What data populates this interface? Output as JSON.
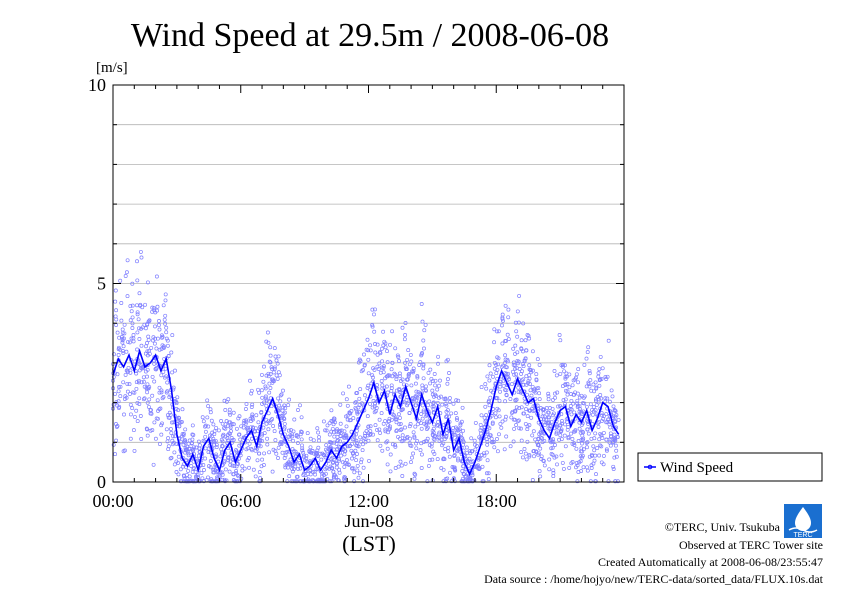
{
  "chart_data": {
    "type": "line",
    "title": "Wind Speed at 29.5m / 2008-06-08",
    "ylabel": "[m/s]",
    "xlabel_date": "Jun-08",
    "xlabel_tz": "(LST)",
    "ylim": [
      0,
      10
    ],
    "xlim_hours": [
      0,
      24
    ],
    "y_ticks": [
      0,
      5,
      10
    ],
    "x_tick_labels": [
      "00:00",
      "06:00",
      "12:00",
      "18:00"
    ],
    "x_tick_hours": [
      0,
      6,
      12,
      18
    ],
    "grid": "horizontal, every 1 m/s",
    "legend_position": "right",
    "series": [
      {
        "name": "Wind Speed",
        "color": "#0000ff",
        "hours": [
          0.0,
          0.25,
          0.5,
          0.75,
          1.0,
          1.25,
          1.5,
          1.75,
          2.0,
          2.25,
          2.5,
          2.75,
          3.0,
          3.25,
          3.5,
          3.75,
          4.0,
          4.25,
          4.5,
          4.75,
          5.0,
          5.25,
          5.5,
          5.75,
          6.0,
          6.25,
          6.5,
          6.75,
          7.0,
          7.25,
          7.5,
          7.75,
          8.0,
          8.25,
          8.5,
          8.75,
          9.0,
          9.25,
          9.5,
          9.75,
          10.0,
          10.25,
          10.5,
          10.75,
          11.0,
          11.25,
          11.5,
          11.75,
          12.0,
          12.25,
          12.5,
          12.75,
          13.0,
          13.25,
          13.5,
          13.75,
          14.0,
          14.25,
          14.5,
          14.75,
          15.0,
          15.25,
          15.5,
          15.75,
          16.0,
          16.25,
          16.5,
          16.75,
          17.0,
          17.25,
          17.5,
          17.75,
          18.0,
          18.25,
          18.5,
          18.75,
          19.0,
          19.25,
          19.5,
          19.75,
          20.0,
          20.25,
          20.5,
          20.75,
          21.0,
          21.25,
          21.5,
          21.75,
          22.0,
          22.25,
          22.5,
          22.75,
          23.0,
          23.25,
          23.5,
          23.75
        ],
        "values": [
          2.7,
          3.1,
          2.9,
          3.2,
          2.8,
          3.3,
          2.9,
          3.0,
          3.2,
          2.8,
          3.1,
          2.3,
          1.2,
          0.6,
          0.4,
          0.7,
          0.3,
          0.9,
          1.1,
          0.6,
          0.3,
          0.8,
          1.0,
          0.5,
          0.8,
          1.1,
          1.3,
          0.9,
          1.5,
          1.8,
          2.1,
          1.7,
          1.2,
          0.9,
          0.5,
          0.7,
          0.3,
          0.4,
          0.6,
          0.3,
          0.5,
          0.8,
          0.6,
          0.9,
          1.0,
          1.2,
          1.5,
          1.8,
          2.1,
          2.5,
          2.0,
          2.3,
          1.7,
          2.2,
          1.9,
          2.4,
          2.0,
          1.6,
          2.2,
          1.8,
          1.5,
          1.9,
          1.2,
          1.6,
          0.8,
          1.1,
          0.5,
          0.2,
          0.5,
          0.9,
          1.3,
          1.8,
          2.4,
          2.8,
          2.5,
          2.2,
          2.6,
          2.3,
          2.0,
          2.1,
          1.6,
          1.3,
          1.1,
          1.5,
          1.8,
          1.9,
          1.4,
          1.7,
          1.5,
          1.8,
          1.3,
          1.6,
          2.0,
          1.9,
          1.4,
          1.2
        ]
      }
    ]
  },
  "credits": {
    "line1": "©TERC, Univ. Tsukuba",
    "line2": "Observed at TERC Tower site",
    "line3": "Created Automatically at 2008-06-08/23:55:47",
    "line4": "Data source : /home/hojyo/new/TERC-data/sorted_data/FLUX.10s.dat"
  },
  "logo": {
    "text": "TERC",
    "icon": "terc-logo-icon"
  }
}
